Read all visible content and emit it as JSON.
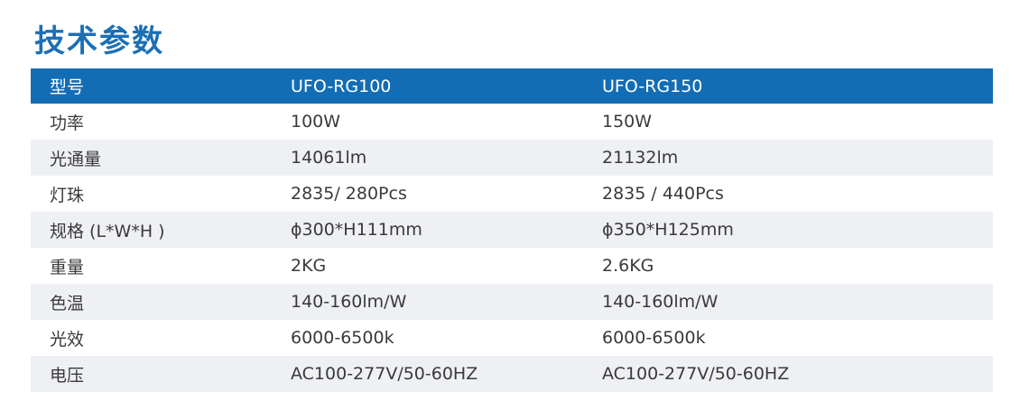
{
  "title": "技术参数",
  "table": {
    "header": [
      "型号",
      "UFO-RG100",
      "UFO-RG150"
    ],
    "rows": [
      [
        "功率",
        "100W",
        "150W"
      ],
      [
        "光通量",
        "14061lm",
        "21132lm"
      ],
      [
        "灯珠",
        "2835/ 280Pcs",
        "2835 / 440Pcs"
      ],
      [
        "规格 (L*W*H )",
        "ϕ300*H111mm",
        "ϕ350*H125mm"
      ],
      [
        "重量",
        "2KG",
        "2.6KG"
      ],
      [
        "色温",
        "140-160lm/W",
        "140-160lm/W"
      ],
      [
        "光效",
        "6000-6500k",
        "6000-6500k"
      ],
      [
        "电压",
        "AC100-277V/50-60HZ",
        "AC100-277V/50-60HZ"
      ]
    ]
  }
}
